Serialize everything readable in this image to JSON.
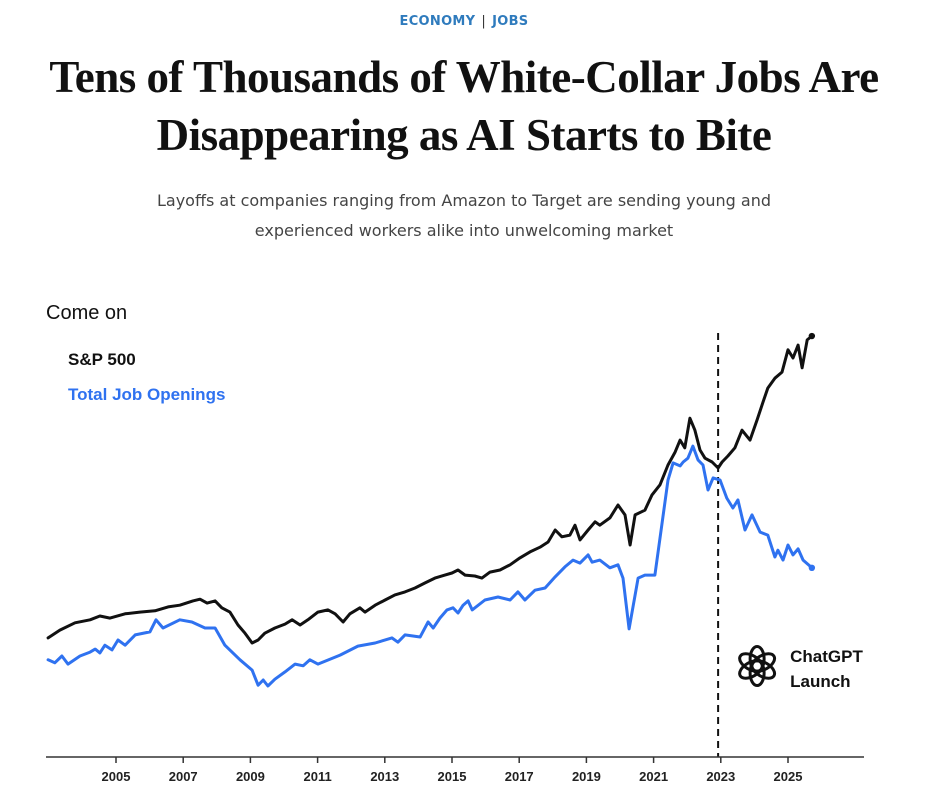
{
  "article": {
    "section": "ECONOMY",
    "subsection": "JOBS",
    "headline_line1": "Tens of Thousands of White-Collar Jobs Are",
    "headline_line2": "Disappearing as AI Starts to Bite",
    "dek_line1": "Layoffs at companies ranging from Amazon to Target are sending young and",
    "dek_line2": "experienced workers alike into unwelcoming market"
  },
  "chart_data": {
    "type": "line",
    "title": "Come on",
    "xlabel": "",
    "ylabel": "",
    "y_units": "normalized index (0 = axis baseline, 100 = top of plot); no y-axis shown",
    "xlim": [
      2002.6,
      2027.2
    ],
    "ylim": [
      0,
      100
    ],
    "grid": false,
    "legend_position": "top-left",
    "x_ticks": [
      2005,
      2007,
      2009,
      2011,
      2013,
      2015,
      2017,
      2019,
      2021,
      2023,
      2025
    ],
    "x_tick_labels": [
      "2005",
      "2007",
      "2009",
      "2011",
      "2013",
      "2015",
      "2017",
      "2019",
      "2021",
      "2023",
      "2025"
    ],
    "colors": {
      "sp500": "#111111",
      "jobs": "#2f72f0"
    },
    "series": [
      {
        "name": "S&P 500",
        "color": "#111111",
        "points": [
          [
            2002.98,
            27.7
          ],
          [
            2003.33,
            29.5
          ],
          [
            2003.78,
            31.2
          ],
          [
            2004.23,
            31.9
          ],
          [
            2004.52,
            32.8
          ],
          [
            2004.82,
            32.3
          ],
          [
            2005.27,
            33.3
          ],
          [
            2005.71,
            33.7
          ],
          [
            2006.16,
            34.0
          ],
          [
            2006.55,
            34.9
          ],
          [
            2006.9,
            35.3
          ],
          [
            2007.29,
            36.3
          ],
          [
            2007.5,
            36.7
          ],
          [
            2007.71,
            35.8
          ],
          [
            2007.95,
            36.3
          ],
          [
            2008.15,
            34.7
          ],
          [
            2008.39,
            33.7
          ],
          [
            2008.63,
            30.7
          ],
          [
            2008.84,
            28.8
          ],
          [
            2009.05,
            26.5
          ],
          [
            2009.23,
            27.2
          ],
          [
            2009.43,
            28.8
          ],
          [
            2009.73,
            30.0
          ],
          [
            2010.03,
            30.9
          ],
          [
            2010.24,
            31.9
          ],
          [
            2010.48,
            30.7
          ],
          [
            2010.71,
            31.9
          ],
          [
            2011.01,
            33.7
          ],
          [
            2011.31,
            34.2
          ],
          [
            2011.52,
            33.3
          ],
          [
            2011.76,
            31.4
          ],
          [
            2011.96,
            33.3
          ],
          [
            2012.26,
            34.7
          ],
          [
            2012.41,
            33.7
          ],
          [
            2012.71,
            35.3
          ],
          [
            2013.01,
            36.5
          ],
          [
            2013.3,
            37.7
          ],
          [
            2013.6,
            38.4
          ],
          [
            2013.9,
            39.3
          ],
          [
            2014.2,
            40.5
          ],
          [
            2014.49,
            41.6
          ],
          [
            2014.79,
            42.3
          ],
          [
            2015.0,
            42.8
          ],
          [
            2015.18,
            43.5
          ],
          [
            2015.39,
            42.3
          ],
          [
            2015.68,
            42.1
          ],
          [
            2015.89,
            41.6
          ],
          [
            2016.13,
            43.0
          ],
          [
            2016.43,
            43.5
          ],
          [
            2016.73,
            44.7
          ],
          [
            2017.02,
            46.3
          ],
          [
            2017.32,
            47.7
          ],
          [
            2017.62,
            48.8
          ],
          [
            2017.86,
            50.0
          ],
          [
            2018.07,
            52.8
          ],
          [
            2018.27,
            51.2
          ],
          [
            2018.51,
            51.6
          ],
          [
            2018.66,
            53.9
          ],
          [
            2018.81,
            50.5
          ],
          [
            2019.05,
            52.8
          ],
          [
            2019.26,
            54.7
          ],
          [
            2019.4,
            53.9
          ],
          [
            2019.7,
            55.6
          ],
          [
            2019.94,
            58.6
          ],
          [
            2020.15,
            56.3
          ],
          [
            2020.3,
            49.3
          ],
          [
            2020.45,
            56.3
          ],
          [
            2020.74,
            57.4
          ],
          [
            2020.95,
            60.9
          ],
          [
            2021.19,
            63.3
          ],
          [
            2021.43,
            67.9
          ],
          [
            2021.64,
            70.9
          ],
          [
            2021.79,
            73.7
          ],
          [
            2021.93,
            71.9
          ],
          [
            2022.08,
            78.8
          ],
          [
            2022.23,
            76.0
          ],
          [
            2022.38,
            71.4
          ],
          [
            2022.53,
            69.5
          ],
          [
            2022.74,
            68.6
          ],
          [
            2022.92,
            67.2
          ],
          [
            2023.04,
            68.6
          ],
          [
            2023.21,
            70.0
          ],
          [
            2023.42,
            71.9
          ],
          [
            2023.63,
            76.0
          ],
          [
            2023.87,
            73.7
          ],
          [
            2024.08,
            78.4
          ],
          [
            2024.26,
            82.6
          ],
          [
            2024.4,
            85.8
          ],
          [
            2024.61,
            88.1
          ],
          [
            2024.82,
            89.5
          ],
          [
            2025.0,
            94.7
          ],
          [
            2025.15,
            92.8
          ],
          [
            2025.3,
            95.8
          ],
          [
            2025.42,
            90.5
          ],
          [
            2025.57,
            97.0
          ],
          [
            2025.71,
            97.9
          ]
        ]
      },
      {
        "name": "Total Job Openings",
        "color": "#2f72f0",
        "points": [
          [
            2002.98,
            22.6
          ],
          [
            2003.18,
            21.9
          ],
          [
            2003.39,
            23.5
          ],
          [
            2003.57,
            21.6
          ],
          [
            2003.93,
            23.5
          ],
          [
            2004.23,
            24.4
          ],
          [
            2004.38,
            25.1
          ],
          [
            2004.52,
            24.2
          ],
          [
            2004.67,
            26.0
          ],
          [
            2004.88,
            24.9
          ],
          [
            2005.06,
            27.2
          ],
          [
            2005.27,
            26.0
          ],
          [
            2005.57,
            28.4
          ],
          [
            2006.01,
            29.1
          ],
          [
            2006.19,
            31.9
          ],
          [
            2006.4,
            30.0
          ],
          [
            2006.9,
            31.9
          ],
          [
            2007.26,
            31.4
          ],
          [
            2007.65,
            30.0
          ],
          [
            2007.95,
            30.0
          ],
          [
            2008.24,
            26.0
          ],
          [
            2008.69,
            22.6
          ],
          [
            2009.05,
            20.2
          ],
          [
            2009.23,
            16.7
          ],
          [
            2009.38,
            17.9
          ],
          [
            2009.52,
            16.5
          ],
          [
            2009.73,
            18.1
          ],
          [
            2010.03,
            19.8
          ],
          [
            2010.33,
            21.6
          ],
          [
            2010.57,
            21.2
          ],
          [
            2010.77,
            22.6
          ],
          [
            2011.01,
            21.6
          ],
          [
            2011.67,
            23.7
          ],
          [
            2012.2,
            25.8
          ],
          [
            2012.71,
            26.5
          ],
          [
            2013.21,
            27.7
          ],
          [
            2013.39,
            26.7
          ],
          [
            2013.6,
            28.4
          ],
          [
            2014.05,
            27.9
          ],
          [
            2014.29,
            31.4
          ],
          [
            2014.44,
            30.0
          ],
          [
            2014.64,
            32.3
          ],
          [
            2014.85,
            34.2
          ],
          [
            2015.03,
            34.7
          ],
          [
            2015.18,
            33.5
          ],
          [
            2015.33,
            35.3
          ],
          [
            2015.48,
            36.3
          ],
          [
            2015.6,
            34.2
          ],
          [
            2015.98,
            36.5
          ],
          [
            2016.37,
            37.2
          ],
          [
            2016.73,
            36.5
          ],
          [
            2016.96,
            38.4
          ],
          [
            2017.17,
            36.5
          ],
          [
            2017.47,
            38.8
          ],
          [
            2017.77,
            39.3
          ],
          [
            2018.07,
            41.9
          ],
          [
            2018.36,
            44.2
          ],
          [
            2018.6,
            45.8
          ],
          [
            2018.81,
            45.1
          ],
          [
            2019.05,
            47.0
          ],
          [
            2019.17,
            45.3
          ],
          [
            2019.4,
            45.8
          ],
          [
            2019.7,
            44.0
          ],
          [
            2019.94,
            44.7
          ],
          [
            2020.09,
            41.6
          ],
          [
            2020.27,
            29.8
          ],
          [
            2020.54,
            41.6
          ],
          [
            2020.74,
            42.3
          ],
          [
            2021.04,
            42.3
          ],
          [
            2021.43,
            64.4
          ],
          [
            2021.58,
            68.4
          ],
          [
            2021.79,
            67.7
          ],
          [
            2021.88,
            68.6
          ],
          [
            2022.02,
            69.5
          ],
          [
            2022.17,
            72.3
          ],
          [
            2022.32,
            69.1
          ],
          [
            2022.47,
            67.9
          ],
          [
            2022.62,
            62.1
          ],
          [
            2022.77,
            64.9
          ],
          [
            2022.98,
            64.4
          ],
          [
            2023.18,
            60.2
          ],
          [
            2023.36,
            57.9
          ],
          [
            2023.51,
            59.8
          ],
          [
            2023.72,
            52.8
          ],
          [
            2023.93,
            56.3
          ],
          [
            2024.17,
            52.3
          ],
          [
            2024.4,
            51.6
          ],
          [
            2024.61,
            46.5
          ],
          [
            2024.7,
            48.1
          ],
          [
            2024.85,
            45.8
          ],
          [
            2025.0,
            49.3
          ],
          [
            2025.15,
            47.0
          ],
          [
            2025.3,
            48.4
          ],
          [
            2025.45,
            45.8
          ],
          [
            2025.71,
            44.0
          ]
        ]
      }
    ],
    "annotations": [
      {
        "type": "vertical-dashed-line",
        "x": 2022.92,
        "label_line1": "ChatGPT",
        "label_line2": "Launch",
        "icon": "openai-logo-icon"
      }
    ]
  },
  "legend": {
    "sp500_label": "S&P 500",
    "jobs_label": "Total Job Openings"
  }
}
